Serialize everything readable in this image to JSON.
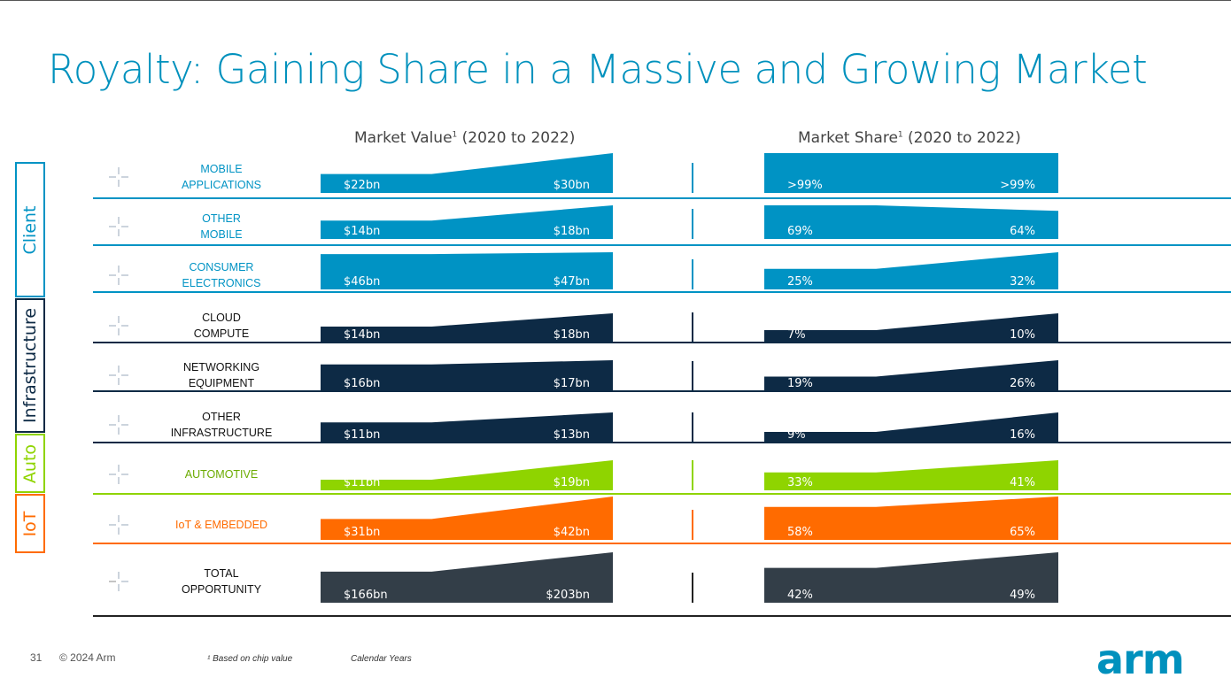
{
  "title": "Royalty: Gaining Share in a Massive and Growing Market",
  "headers": {
    "value": "Market Value",
    "share": "Market Share",
    "footnote_mark": "1",
    "period": "(2020 to 2022)"
  },
  "groups": [
    {
      "label": "Client",
      "color": "#0093c4"
    },
    {
      "label": "Infrastructure",
      "color": "#0d2a45"
    },
    {
      "label": "Auto",
      "color": "#8fd400"
    },
    {
      "label": "IoT",
      "color": "#ff6b00"
    }
  ],
  "colors": {
    "client": "#0093c4",
    "infrastructure": "#0d2a45",
    "auto": "#8fd400",
    "iot": "#ff6b00",
    "total": "#333e48",
    "title": "#0091bd"
  },
  "chart_data": {
    "type": "area",
    "x": [
      "2020",
      "2022"
    ],
    "rows": [
      {
        "label": "MOBILE\nAPPLICATIONS",
        "group": "client",
        "value": [
          "$22bn",
          "$30bn"
        ],
        "value_num": [
          22,
          30
        ],
        "share": [
          ">99%",
          ">99%"
        ],
        "share_num": [
          99,
          99
        ]
      },
      {
        "label": "OTHER\nMOBILE",
        "group": "client",
        "value": [
          "$14bn",
          "$18bn"
        ],
        "value_num": [
          14,
          18
        ],
        "share": [
          "69%",
          "64%"
        ],
        "share_num": [
          69,
          64
        ]
      },
      {
        "label": "CONSUMER\nELECTRONICS",
        "group": "client",
        "value": [
          "$46bn",
          "$47bn"
        ],
        "value_num": [
          46,
          47
        ],
        "share": [
          "25%",
          "32%"
        ],
        "share_num": [
          25,
          32
        ]
      },
      {
        "label": "CLOUD\nCOMPUTE",
        "group": "infrastructure",
        "value": [
          "$14bn",
          "$18bn"
        ],
        "value_num": [
          14,
          18
        ],
        "share": [
          "7%",
          "10%"
        ],
        "share_num": [
          7,
          10
        ]
      },
      {
        "label": "NETWORKING\nEQUIPMENT",
        "group": "infrastructure",
        "value": [
          "$16bn",
          "$17bn"
        ],
        "value_num": [
          16,
          17
        ],
        "share": [
          "19%",
          "26%"
        ],
        "share_num": [
          19,
          26
        ]
      },
      {
        "label": "OTHER\nINFRASTRUCTURE",
        "group": "infrastructure",
        "value": [
          "$11bn",
          "$13bn"
        ],
        "value_num": [
          11,
          13
        ],
        "share": [
          "9%",
          "16%"
        ],
        "share_num": [
          9,
          16
        ]
      },
      {
        "label": "AUTOMOTIVE",
        "group": "auto",
        "value": [
          "$11bn",
          "$19bn"
        ],
        "value_num": [
          11,
          19
        ],
        "share": [
          "33%",
          "41%"
        ],
        "share_num": [
          33,
          41
        ]
      },
      {
        "label": "IoT & EMBEDDED",
        "group": "iot",
        "value": [
          "$31bn",
          "$42bn"
        ],
        "value_num": [
          31,
          42
        ],
        "share": [
          "58%",
          "65%"
        ],
        "share_num": [
          58,
          65
        ]
      },
      {
        "label": "TOTAL\nOPPORTUNITY",
        "group": "total",
        "value": [
          "$166bn",
          "$203bn"
        ],
        "value_num": [
          166,
          203
        ],
        "share": [
          "42%",
          "49%"
        ],
        "share_num": [
          42,
          49
        ]
      }
    ]
  },
  "footer": {
    "page": "31",
    "copyright": "© 2024 Arm",
    "footnote": "¹ Based on chip value",
    "note": "Calendar Years",
    "logo": "arm"
  }
}
